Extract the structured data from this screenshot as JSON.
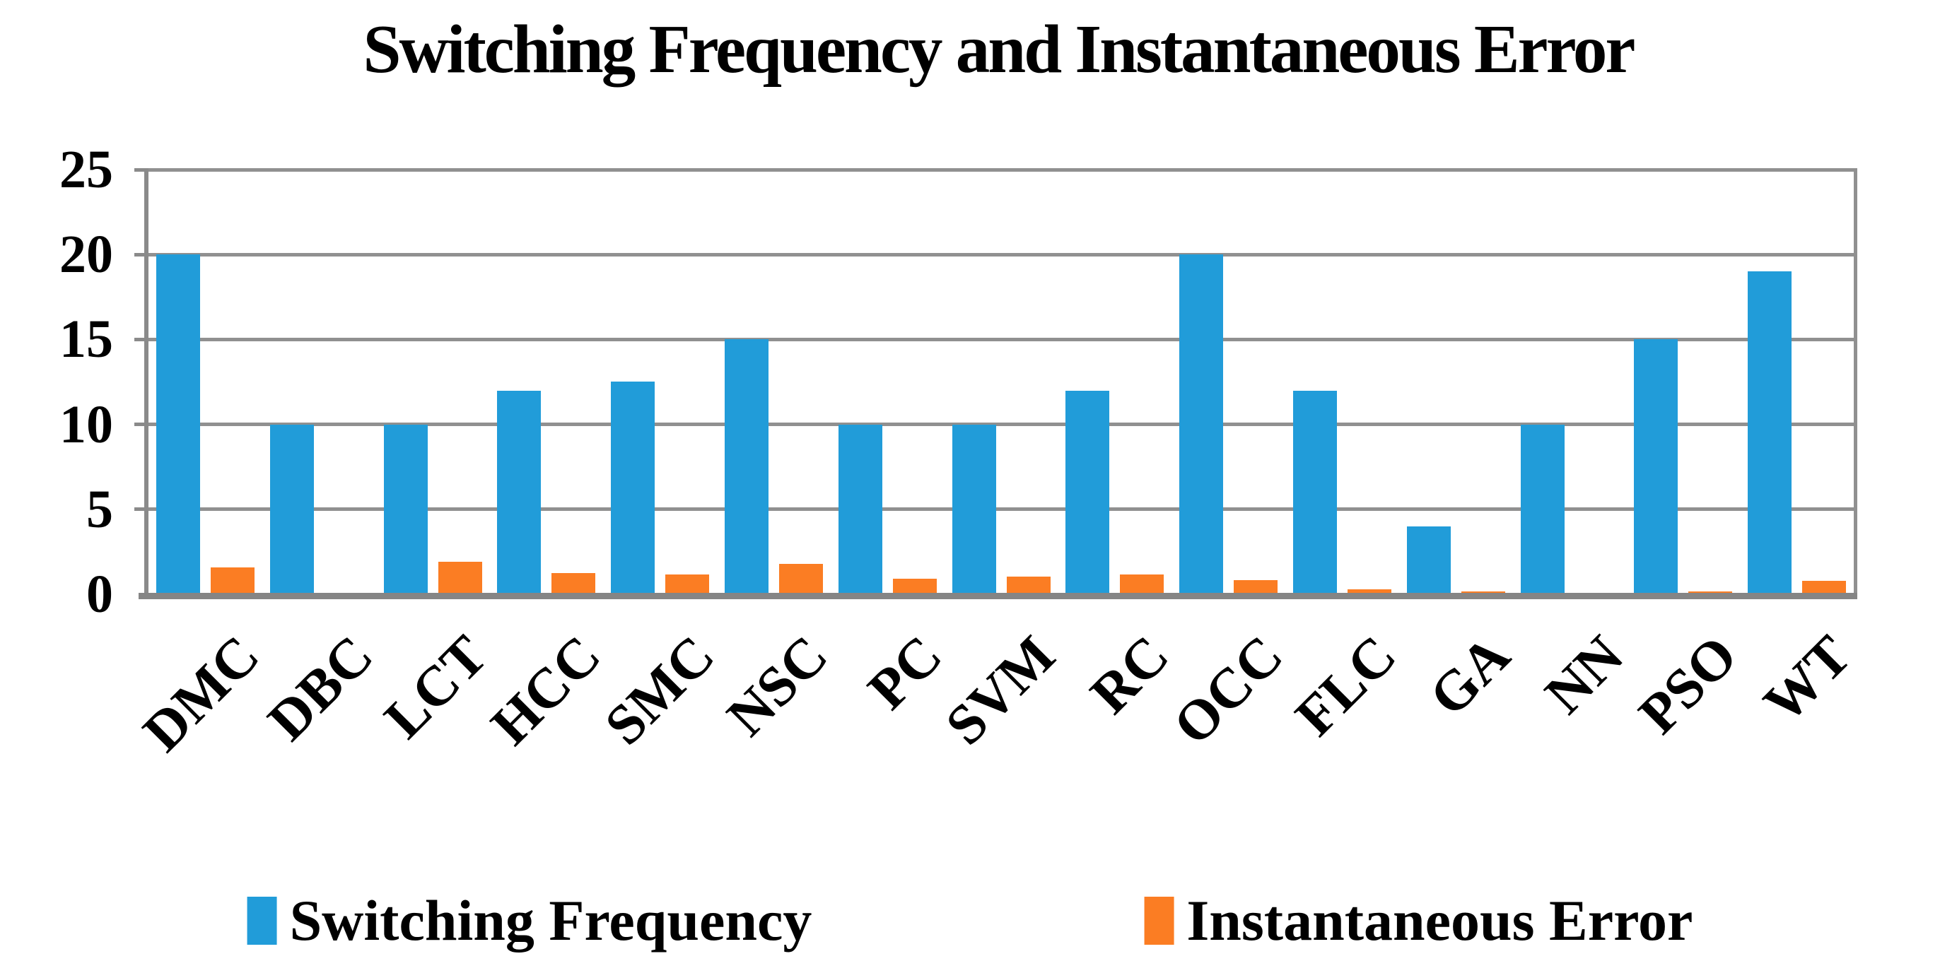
{
  "title": "Switching Frequency and Instantaneous Error",
  "chart_data": {
    "type": "bar",
    "categories": [
      "DMC",
      "DBC",
      "LCT",
      "HCC",
      "SMC",
      "NSC",
      "PC",
      "SVM",
      "RC",
      "OCC",
      "FLC",
      "GA",
      "NN",
      "PSO",
      "WT"
    ],
    "series": [
      {
        "name": "Switching Frequency",
        "color": "#219CD9",
        "values": [
          20,
          10,
          10,
          12,
          12.5,
          15,
          10,
          10,
          12,
          20,
          12,
          4,
          10,
          15,
          19
        ]
      },
      {
        "name": "Instantaneous Error",
        "color": "#FB7D23",
        "values": [
          1.6,
          0.1,
          1.9,
          1.25,
          1.15,
          1.8,
          0.9,
          1.05,
          1.15,
          0.85,
          0.3,
          0.15,
          0.1,
          0.15,
          0.8
        ]
      }
    ],
    "xlabel": "",
    "ylabel": "",
    "ylim": [
      0,
      25
    ],
    "yticks": [
      0,
      5,
      10,
      15,
      20,
      25
    ],
    "grid": true,
    "legend_position": "bottom"
  },
  "colors": {
    "background": "#FFFFFF",
    "gridline": "#909090",
    "axis": "#8A8A8A",
    "text": "#000000"
  }
}
